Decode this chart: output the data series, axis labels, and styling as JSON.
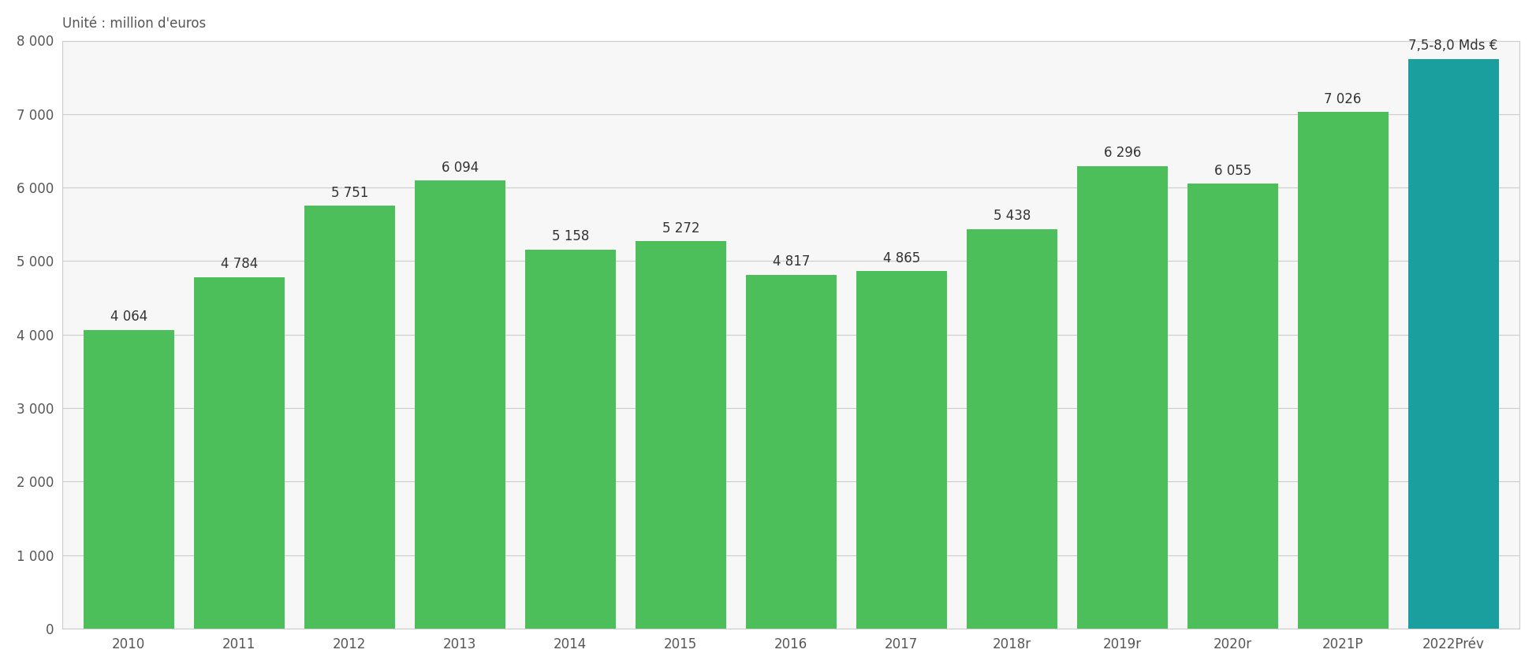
{
  "categories": [
    "2010",
    "2011",
    "2012",
    "2013",
    "2014",
    "2015",
    "2016",
    "2017",
    "2018r",
    "2019r",
    "2020r",
    "2021P",
    "2022Prév"
  ],
  "values": [
    4064,
    4784,
    5751,
    6094,
    5158,
    5272,
    4817,
    4865,
    5438,
    6296,
    6055,
    7026,
    7750
  ],
  "labels": [
    "4 064",
    "4 784",
    "5 751",
    "6 094",
    "5 158",
    "5 272",
    "4 817",
    "4 865",
    "5 438",
    "6 296",
    "6 055",
    "7 026",
    "7,5-8,0 Mds €"
  ],
  "bar_colors": [
    "#4cbe5a",
    "#4cbe5a",
    "#4cbe5a",
    "#4cbe5a",
    "#4cbe5a",
    "#4cbe5a",
    "#4cbe5a",
    "#4cbe5a",
    "#4cbe5a",
    "#4cbe5a",
    "#4cbe5a",
    "#4cbe5a",
    "#1a9e9e"
  ],
  "ylim": [
    0,
    8000
  ],
  "yticks": [
    0,
    1000,
    2000,
    3000,
    4000,
    5000,
    6000,
    7000,
    8000
  ],
  "ytick_labels": [
    "0",
    "1 000",
    "2 000",
    "3 000",
    "4 000",
    "5 000",
    "6 000",
    "7 000",
    "8 000"
  ],
  "unit_label": "Unité : million d'euros",
  "background_color": "#ffffff",
  "plot_bg_color": "#f5f5f5",
  "grid_color": "#cccccc",
  "label_fontsize": 12,
  "tick_fontsize": 12,
  "unit_fontsize": 12,
  "bar_width": 0.82
}
